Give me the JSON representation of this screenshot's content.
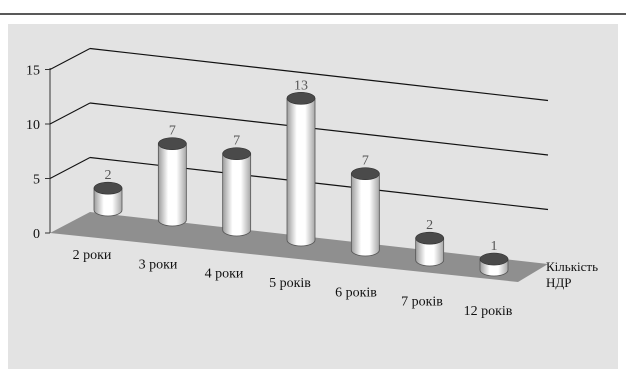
{
  "chart_data": {
    "type": "bar",
    "title": "",
    "xlabel": "",
    "ylabel": "",
    "ylim": [
      0,
      15
    ],
    "y_ticks": [
      "0",
      "5",
      "10",
      "15"
    ],
    "categories": [
      "2 роки",
      "3 роки",
      "4 роки",
      "5 років",
      "6 років",
      "7 років",
      "12 років"
    ],
    "series": [
      {
        "name": "Кількість НДР",
        "values": [
          2,
          7,
          7,
          13,
          7,
          2,
          1
        ]
      }
    ],
    "value_labels": [
      "2",
      "7",
      "7",
      "13",
      "7",
      "2",
      "1"
    ],
    "legend": {
      "lines": [
        "Кількість",
        "НДР"
      ],
      "position": "right"
    },
    "grid": true,
    "style": "3d-cylinder",
    "colors": {
      "background": "#e3e3e3",
      "floor": "#8f8f8f",
      "bar": "#ffffff",
      "gridline": "#111111"
    }
  }
}
